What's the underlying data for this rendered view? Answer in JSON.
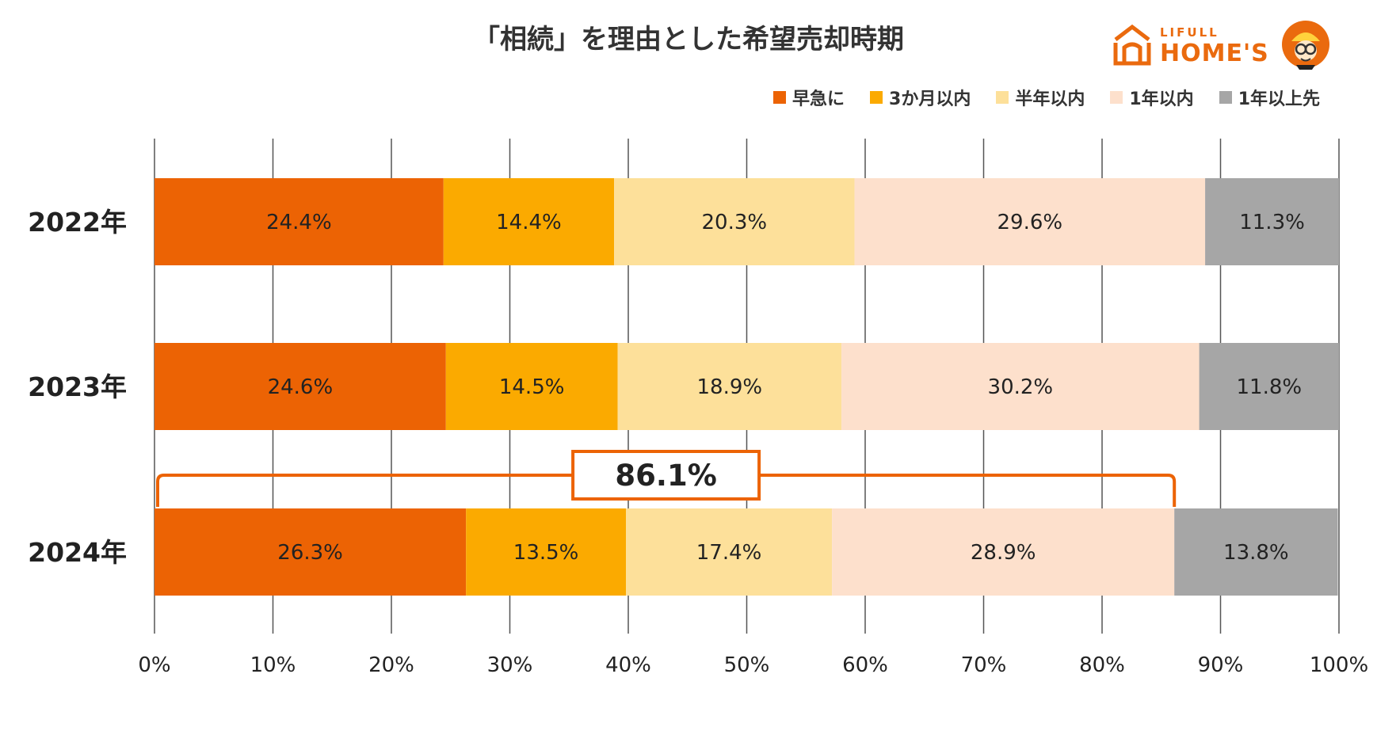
{
  "title": "「相続」を理由とした希望売却時期",
  "logo": {
    "small": "LIFULL",
    "big": "HOME'S"
  },
  "chart_data": {
    "type": "bar",
    "orientation": "horizontal",
    "stacked": true,
    "categories": [
      "2022年",
      "2023年",
      "2024年"
    ],
    "series": [
      {
        "name": "早急に",
        "color": "#ec6304",
        "values": [
          24.4,
          24.6,
          26.3
        ],
        "labels": [
          "24.4%",
          "24.6%",
          "26.3%"
        ]
      },
      {
        "name": "3か月以内",
        "color": "#fbaa00",
        "values": [
          14.4,
          14.5,
          13.5
        ],
        "labels": [
          "14.4%",
          "14.5%",
          "13.5%"
        ]
      },
      {
        "name": "半年以内",
        "color": "#fde09a",
        "values": [
          20.3,
          18.9,
          17.4
        ],
        "labels": [
          "20.3%",
          "18.9%",
          "17.4%"
        ]
      },
      {
        "name": "1年以内",
        "color": "#fde0cc",
        "values": [
          29.6,
          30.2,
          28.9
        ],
        "labels": [
          "29.6%",
          "30.2%",
          "28.9%"
        ]
      },
      {
        "name": "1年以上先",
        "color": "#a6a6a6",
        "values": [
          11.3,
          11.8,
          13.8
        ],
        "labels": [
          "11.3%",
          "11.8%",
          "13.8%"
        ]
      }
    ],
    "xlim": [
      0,
      100
    ],
    "xticks": [
      "0%",
      "10%",
      "20%",
      "30%",
      "40%",
      "50%",
      "60%",
      "70%",
      "80%",
      "90%",
      "100%"
    ],
    "grid": "vertical",
    "legend": "top-right",
    "annotation": {
      "text": "86.1%",
      "category": "2024年",
      "from": 0,
      "to": 86.1,
      "color": "#ec6304"
    }
  }
}
